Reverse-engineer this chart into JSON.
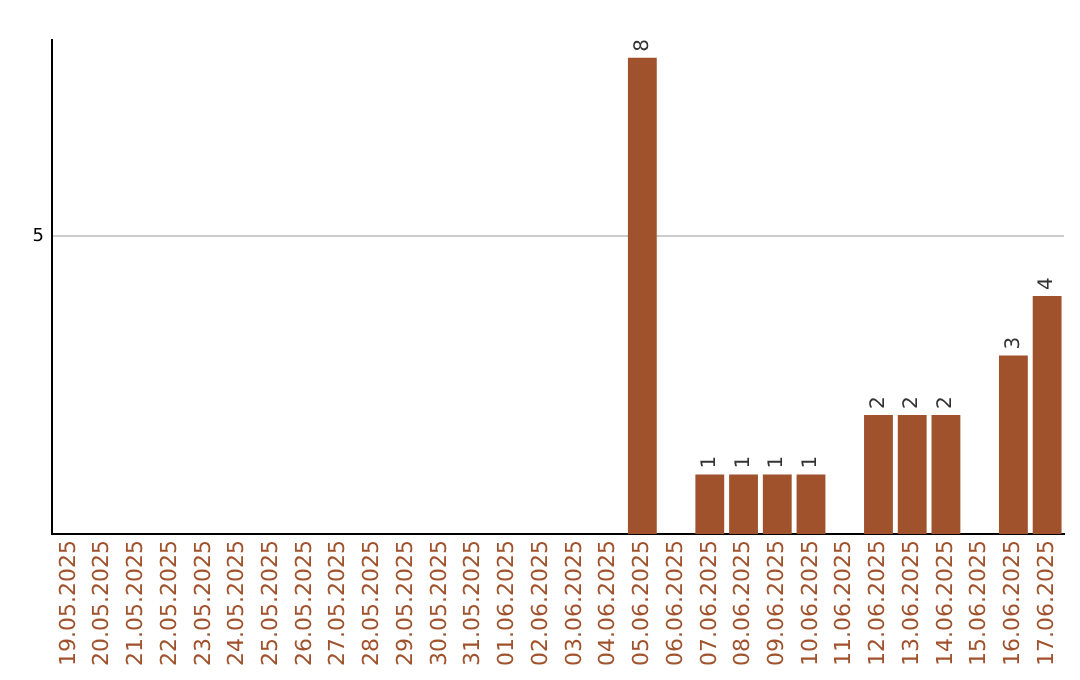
{
  "chart_data": {
    "type": "bar",
    "categories": [
      "19.05.2025",
      "20.05.2025",
      "21.05.2025",
      "22.05.2025",
      "23.05.2025",
      "24.05.2025",
      "25.05.2025",
      "26.05.2025",
      "27.05.2025",
      "28.05.2025",
      "29.05.2025",
      "30.05.2025",
      "31.05.2025",
      "01.06.2025",
      "02.06.2025",
      "03.06.2025",
      "04.06.2025",
      "05.06.2025",
      "06.06.2025",
      "07.06.2025",
      "08.06.2025",
      "09.06.2025",
      "10.06.2025",
      "11.06.2025",
      "12.06.2025",
      "13.06.2025",
      "14.06.2025",
      "15.06.2025",
      "16.06.2025",
      "17.06.2025"
    ],
    "values": [
      null,
      null,
      null,
      null,
      null,
      null,
      null,
      null,
      null,
      null,
      null,
      null,
      null,
      null,
      null,
      null,
      null,
      8,
      null,
      1,
      1,
      1,
      1,
      null,
      2,
      2,
      2,
      null,
      3,
      4
    ],
    "data_labels": true,
    "color": "#a0522d",
    "ylim": [
      0,
      8.3
    ],
    "yticks": [
      5
    ],
    "grid": "y",
    "legend": false
  }
}
